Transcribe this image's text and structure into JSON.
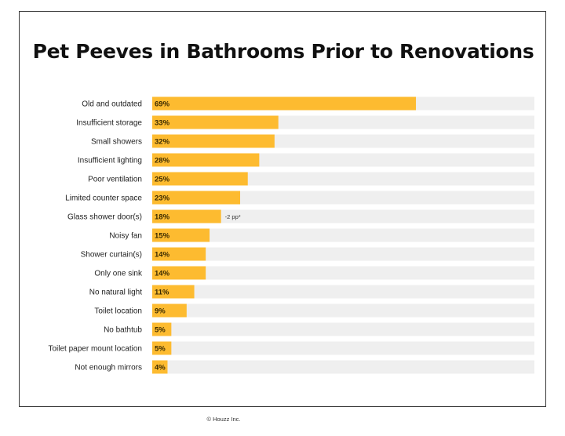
{
  "chart_data": {
    "type": "bar",
    "orientation": "horizontal",
    "title": "Pet Peeves in Bathrooms Prior to Renovations",
    "categories": [
      "Old and outdated",
      "Insufficient storage",
      "Small showers",
      "Insufficient lighting",
      "Poor ventilation",
      "Limited counter space",
      "Glass shower door(s)",
      "Noisy fan",
      "Shower curtain(s)",
      "Only one sink",
      "No natural light",
      "Toilet location",
      "No bathtub",
      "Toilet paper mount location",
      "Not enough mirrors"
    ],
    "values": [
      69,
      33,
      32,
      28,
      25,
      23,
      18,
      15,
      14,
      14,
      11,
      9,
      5,
      5,
      4
    ],
    "value_labels": [
      "69%",
      "33%",
      "32%",
      "28%",
      "25%",
      "23%",
      "18%",
      "15%",
      "14%",
      "14%",
      "11%",
      "9%",
      "5%",
      "5%",
      "4%"
    ],
    "annotations": [
      {
        "category": "Glass shower door(s)",
        "text": "-2 pp*"
      }
    ],
    "xlim": [
      0,
      100
    ],
    "bar_color": "#FDBB30",
    "track_color": "#EFEFEF",
    "label_text_color": "#3A2A00",
    "grid": false,
    "legend": "none"
  },
  "footer": {
    "copyright": "© Houzz Inc."
  }
}
